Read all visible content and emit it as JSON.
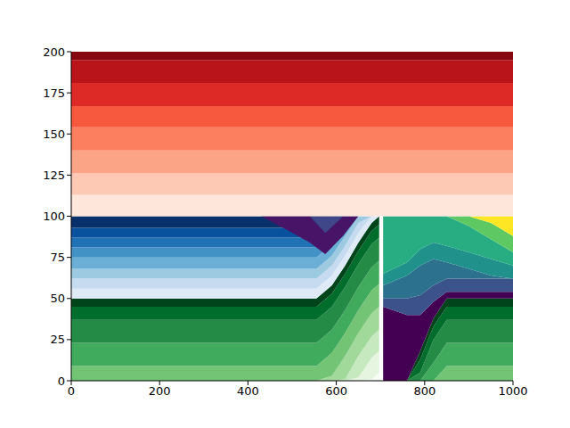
{
  "chart_data": {
    "type": "contour",
    "xlim": [
      0,
      1000
    ],
    "ylim": [
      0,
      200
    ],
    "xticks": [
      0,
      200,
      400,
      600,
      800,
      1000
    ],
    "yticks": [
      0,
      25,
      50,
      75,
      100,
      125,
      150,
      175,
      200
    ],
    "regions": [
      {
        "x": [
          0,
          555,
          590,
          620,
          650,
          680,
          697
        ],
        "boundaries": [
          [
            0,
            0,
            0,
            0,
            0,
            0,
            0
          ],
          [
            0,
            0,
            0,
            0,
            0,
            1,
            5
          ],
          [
            0,
            0,
            0,
            0,
            2,
            14,
            18
          ],
          [
            0,
            0,
            0,
            1,
            15,
            27,
            31
          ],
          [
            0,
            0,
            3,
            15,
            29,
            41,
            45
          ],
          [
            9,
            9,
            17,
            29,
            43,
            55,
            59
          ],
          [
            23,
            23,
            31,
            43,
            57,
            69,
            73
          ],
          [
            37,
            37,
            45,
            57,
            71,
            83,
            87
          ],
          [
            45,
            45,
            53,
            65,
            79,
            91,
            95
          ],
          [
            50,
            50,
            58,
            70,
            84,
            96,
            100
          ]
        ],
        "colors": [
          "#f7fcf5",
          "#e5f5e0",
          "#c7e9c0",
          "#a1d99b",
          "#74c476",
          "#41ab5d",
          "#238b45",
          "#006d2c",
          "#00441b"
        ]
      },
      {
        "x": [
          0,
          555,
          590,
          620,
          650,
          680,
          697
        ],
        "boundaries": [
          [
            50,
            50,
            58,
            70,
            84,
            96,
            100
          ],
          [
            56,
            56,
            64,
            76,
            90,
            100,
            100
          ],
          [
            62,
            62,
            70,
            82,
            96,
            100,
            100
          ],
          [
            68,
            68,
            76,
            88,
            100,
            100,
            100
          ],
          [
            75,
            75,
            83,
            95,
            100,
            100,
            100
          ],
          [
            81,
            81,
            89,
            100,
            100,
            100,
            100
          ],
          [
            87,
            87,
            95,
            100,
            100,
            100,
            100
          ],
          [
            93,
            93,
            100,
            100,
            100,
            100,
            100
          ],
          [
            100,
            100,
            100,
            100,
            100,
            100,
            100
          ]
        ],
        "colors": [
          "#deebf7",
          "#c6dbef",
          "#9ecae1",
          "#6baed6",
          "#4292c6",
          "#2171b5",
          "#08519c",
          "#08306b"
        ]
      },
      {
        "x": [
          430,
          500,
          540,
          575,
          615,
          650
        ],
        "boundaries": [
          [
            100,
            90,
            84,
            77,
            88,
            100
          ],
          [
            100,
            100,
            100,
            90,
            100,
            100
          ],
          [
            100,
            100,
            100,
            100,
            100,
            100
          ]
        ],
        "colors": [
          "#481467",
          "#3f4788"
        ]
      },
      {
        "x": [
          706,
          760,
          790,
          820,
          850,
          900,
          950,
          1000
        ],
        "boundaries": [
          [
            0,
            0,
            0,
            0,
            0,
            0,
            0,
            0
          ],
          [
            0,
            0,
            0,
            0,
            9,
            9,
            9,
            9
          ],
          [
            0,
            0,
            0,
            11,
            23,
            23,
            23,
            23
          ],
          [
            0,
            0,
            5,
            25,
            37,
            37,
            37,
            37
          ],
          [
            0,
            0,
            13,
            33,
            45,
            45,
            45,
            45
          ],
          [
            0,
            0,
            18,
            38,
            50,
            50,
            50,
            50
          ]
        ],
        "colors": [
          "#74c476",
          "#41ab5d",
          "#238b45",
          "#006d2c",
          "#00441b"
        ]
      },
      {
        "x": [
          706,
          760,
          790,
          820,
          850,
          900,
          950,
          1000
        ],
        "boundaries": [
          [
            0,
            0,
            18,
            38,
            50,
            50,
            50,
            50
          ],
          [
            45,
            40,
            40,
            48,
            54,
            54,
            54,
            54
          ],
          [
            50,
            50,
            52,
            58,
            62,
            62,
            62,
            62
          ],
          [
            58,
            64,
            70,
            74,
            72,
            68,
            64,
            62
          ],
          [
            65,
            72,
            80,
            84,
            82,
            78,
            74,
            70
          ],
          [
            100,
            100,
            100,
            100,
            100,
            94,
            86,
            78
          ],
          [
            100,
            100,
            100,
            100,
            100,
            100,
            96,
            88
          ],
          [
            100,
            100,
            100,
            100,
            100,
            100,
            100,
            100
          ]
        ],
        "colors": [
          "#440154",
          "#3b528b",
          "#2c728e",
          "#21918c",
          "#27ad81",
          "#5ec962",
          "#fde725"
        ]
      },
      {
        "x": [
          0,
          1000
        ],
        "boundaries": [
          [
            100,
            100
          ],
          [
            113,
            113
          ],
          [
            126,
            126
          ],
          [
            140,
            140
          ],
          [
            154,
            154
          ],
          [
            167,
            167
          ],
          [
            181,
            181
          ],
          [
            195,
            195
          ],
          [
            200,
            200
          ]
        ],
        "colors": [
          "#fee6da",
          "#fdc9b4",
          "#fca486",
          "#fc8060",
          "#f7593f",
          "#de2a26",
          "#b91419",
          "#860811"
        ]
      }
    ]
  }
}
